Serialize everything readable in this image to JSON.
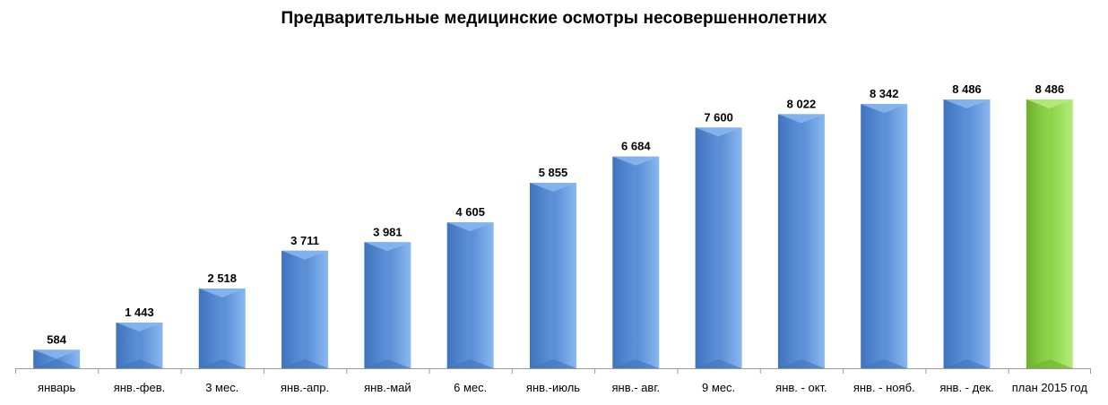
{
  "chart_data": {
    "type": "bar",
    "title": "Предварительные медицинские осмотры несовершеннолетних",
    "categories": [
      "январь",
      "янв.-фев.",
      "3 мес.",
      "янв.-апр.",
      "янв.-май",
      "6 мес.",
      "янв.-июль",
      "янв.- авг.",
      "9 мес.",
      "янв. - окт.",
      "янв. - нояб.",
      "янв. - дек.",
      "план 2015 год"
    ],
    "values": [
      584,
      1443,
      2518,
      3711,
      3981,
      4605,
      5855,
      6684,
      7600,
      8022,
      8342,
      8486,
      8486
    ],
    "value_labels": [
      "584",
      "1 443",
      "2 518",
      "3 711",
      "3 981",
      "4 605",
      "5 855",
      "6 684",
      "7 600",
      "8 022",
      "8 342",
      "8 486",
      "8 486"
    ],
    "ylim": [
      0,
      10000
    ],
    "grid": false,
    "legend": "none",
    "colors": {
      "bar": "#5b8fd6",
      "bar_light": "#8ab8f0",
      "bar_dark": "#3f73bd",
      "plan_bar": "#8ed44a",
      "plan_bar_light": "#b6ec7c",
      "plan_bar_dark": "#6cb02e",
      "axis": "#9a9a9a"
    }
  }
}
